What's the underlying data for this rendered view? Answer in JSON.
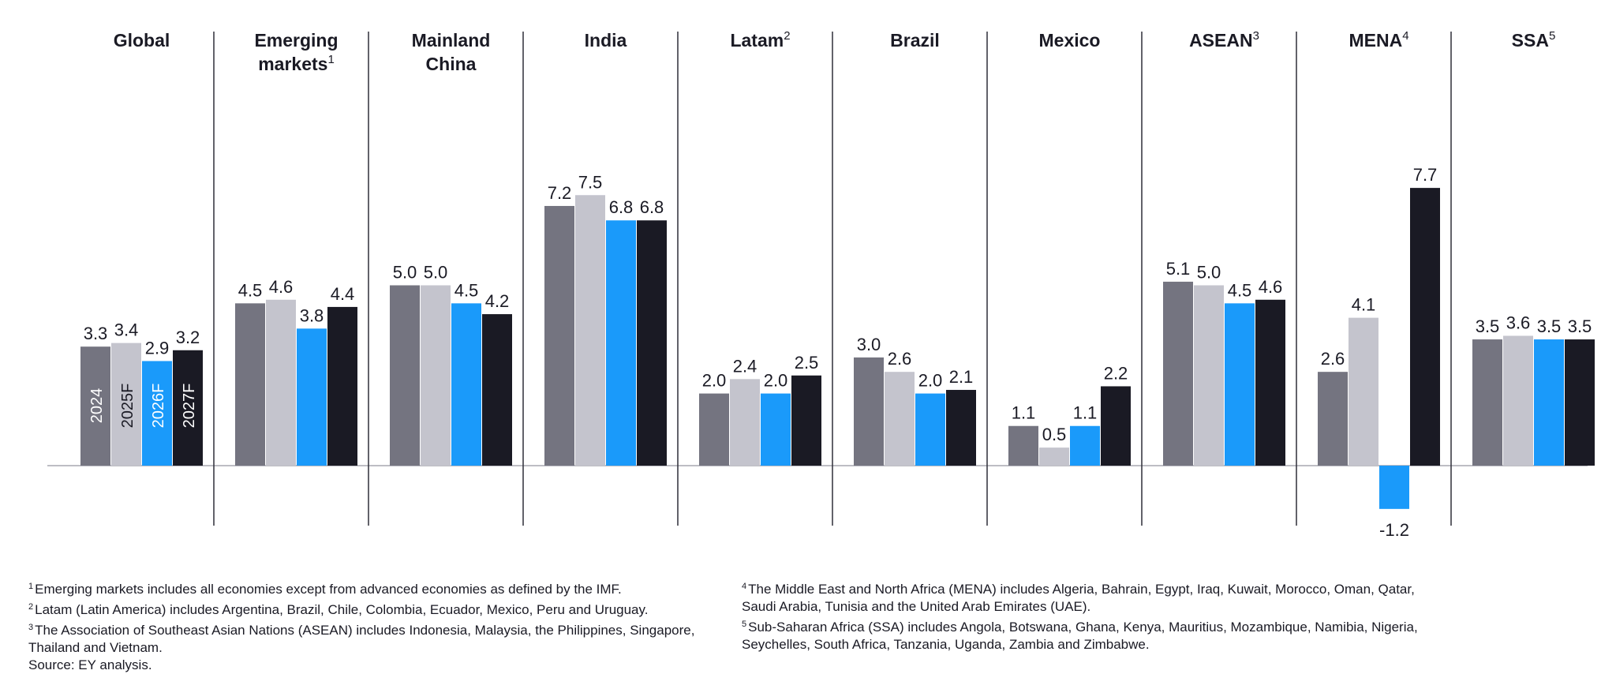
{
  "chart_data": {
    "type": "bar",
    "series": [
      {
        "name": "2024",
        "color": "#747480"
      },
      {
        "name": "2025F",
        "color": "#c4c4cd"
      },
      {
        "name": "2026F",
        "color": "#1a9afa"
      },
      {
        "name": "2027F",
        "color": "#1a1a24"
      }
    ],
    "panels": [
      {
        "title": "Global",
        "sup": "",
        "values": [
          3.3,
          3.4,
          2.9,
          3.2
        ]
      },
      {
        "title": "Emerging markets",
        "sup": "1",
        "values": [
          4.5,
          4.6,
          3.8,
          4.4
        ]
      },
      {
        "title": "Mainland China",
        "sup": "",
        "values": [
          5.0,
          5.0,
          4.5,
          4.2
        ]
      },
      {
        "title": "India",
        "sup": "",
        "values": [
          7.2,
          7.5,
          6.8,
          6.8
        ]
      },
      {
        "title": "Latam",
        "sup": "2",
        "values": [
          2.0,
          2.4,
          2.0,
          2.5
        ]
      },
      {
        "title": "Brazil",
        "sup": "",
        "values": [
          3.0,
          2.6,
          2.0,
          2.1
        ]
      },
      {
        "title": "Mexico",
        "sup": "",
        "values": [
          1.1,
          0.5,
          1.1,
          2.2
        ]
      },
      {
        "title": "ASEAN",
        "sup": "3",
        "values": [
          5.1,
          5.0,
          4.5,
          4.6
        ]
      },
      {
        "title": "MENA",
        "sup": "4",
        "values": [
          2.6,
          4.1,
          -1.2,
          7.7
        ]
      },
      {
        "title": "SSA",
        "sup": "5",
        "values": [
          3.5,
          3.6,
          3.5,
          3.5
        ]
      }
    ],
    "grid": false
  },
  "footnotes_left": [
    {
      "sup": "1",
      "text": "Emerging markets includes all economies except from advanced economies as defined by the IMF."
    },
    {
      "sup": "2",
      "text": "Latam (Latin America) includes Argentina, Brazil, Chile, Colombia, Ecuador, Mexico, Peru and Uruguay."
    },
    {
      "sup": "3",
      "text": "The Association of Southeast Asian Nations (ASEAN) includes Indonesia, Malaysia, the Philippines, Singapore, Thailand and Vietnam."
    },
    {
      "sup": "",
      "text": "Source: EY analysis."
    }
  ],
  "footnotes_right": [
    {
      "sup": "4",
      "text": "The Middle East and North Africa (MENA) includes Algeria, Bahrain, Egypt, Iraq, Kuwait, Morocco, Oman, Qatar, Saudi Arabia, Tunisia and the United Arab Emirates (UAE)."
    },
    {
      "sup": "5",
      "text": "Sub-Saharan Africa (SSA) includes Angola, Botswana, Ghana, Kenya, Mauritius, Mozambique, Namibia, Nigeria, Seychelles, South Africa, Tanzania, Uganda, Zambia and Zimbabwe."
    }
  ]
}
